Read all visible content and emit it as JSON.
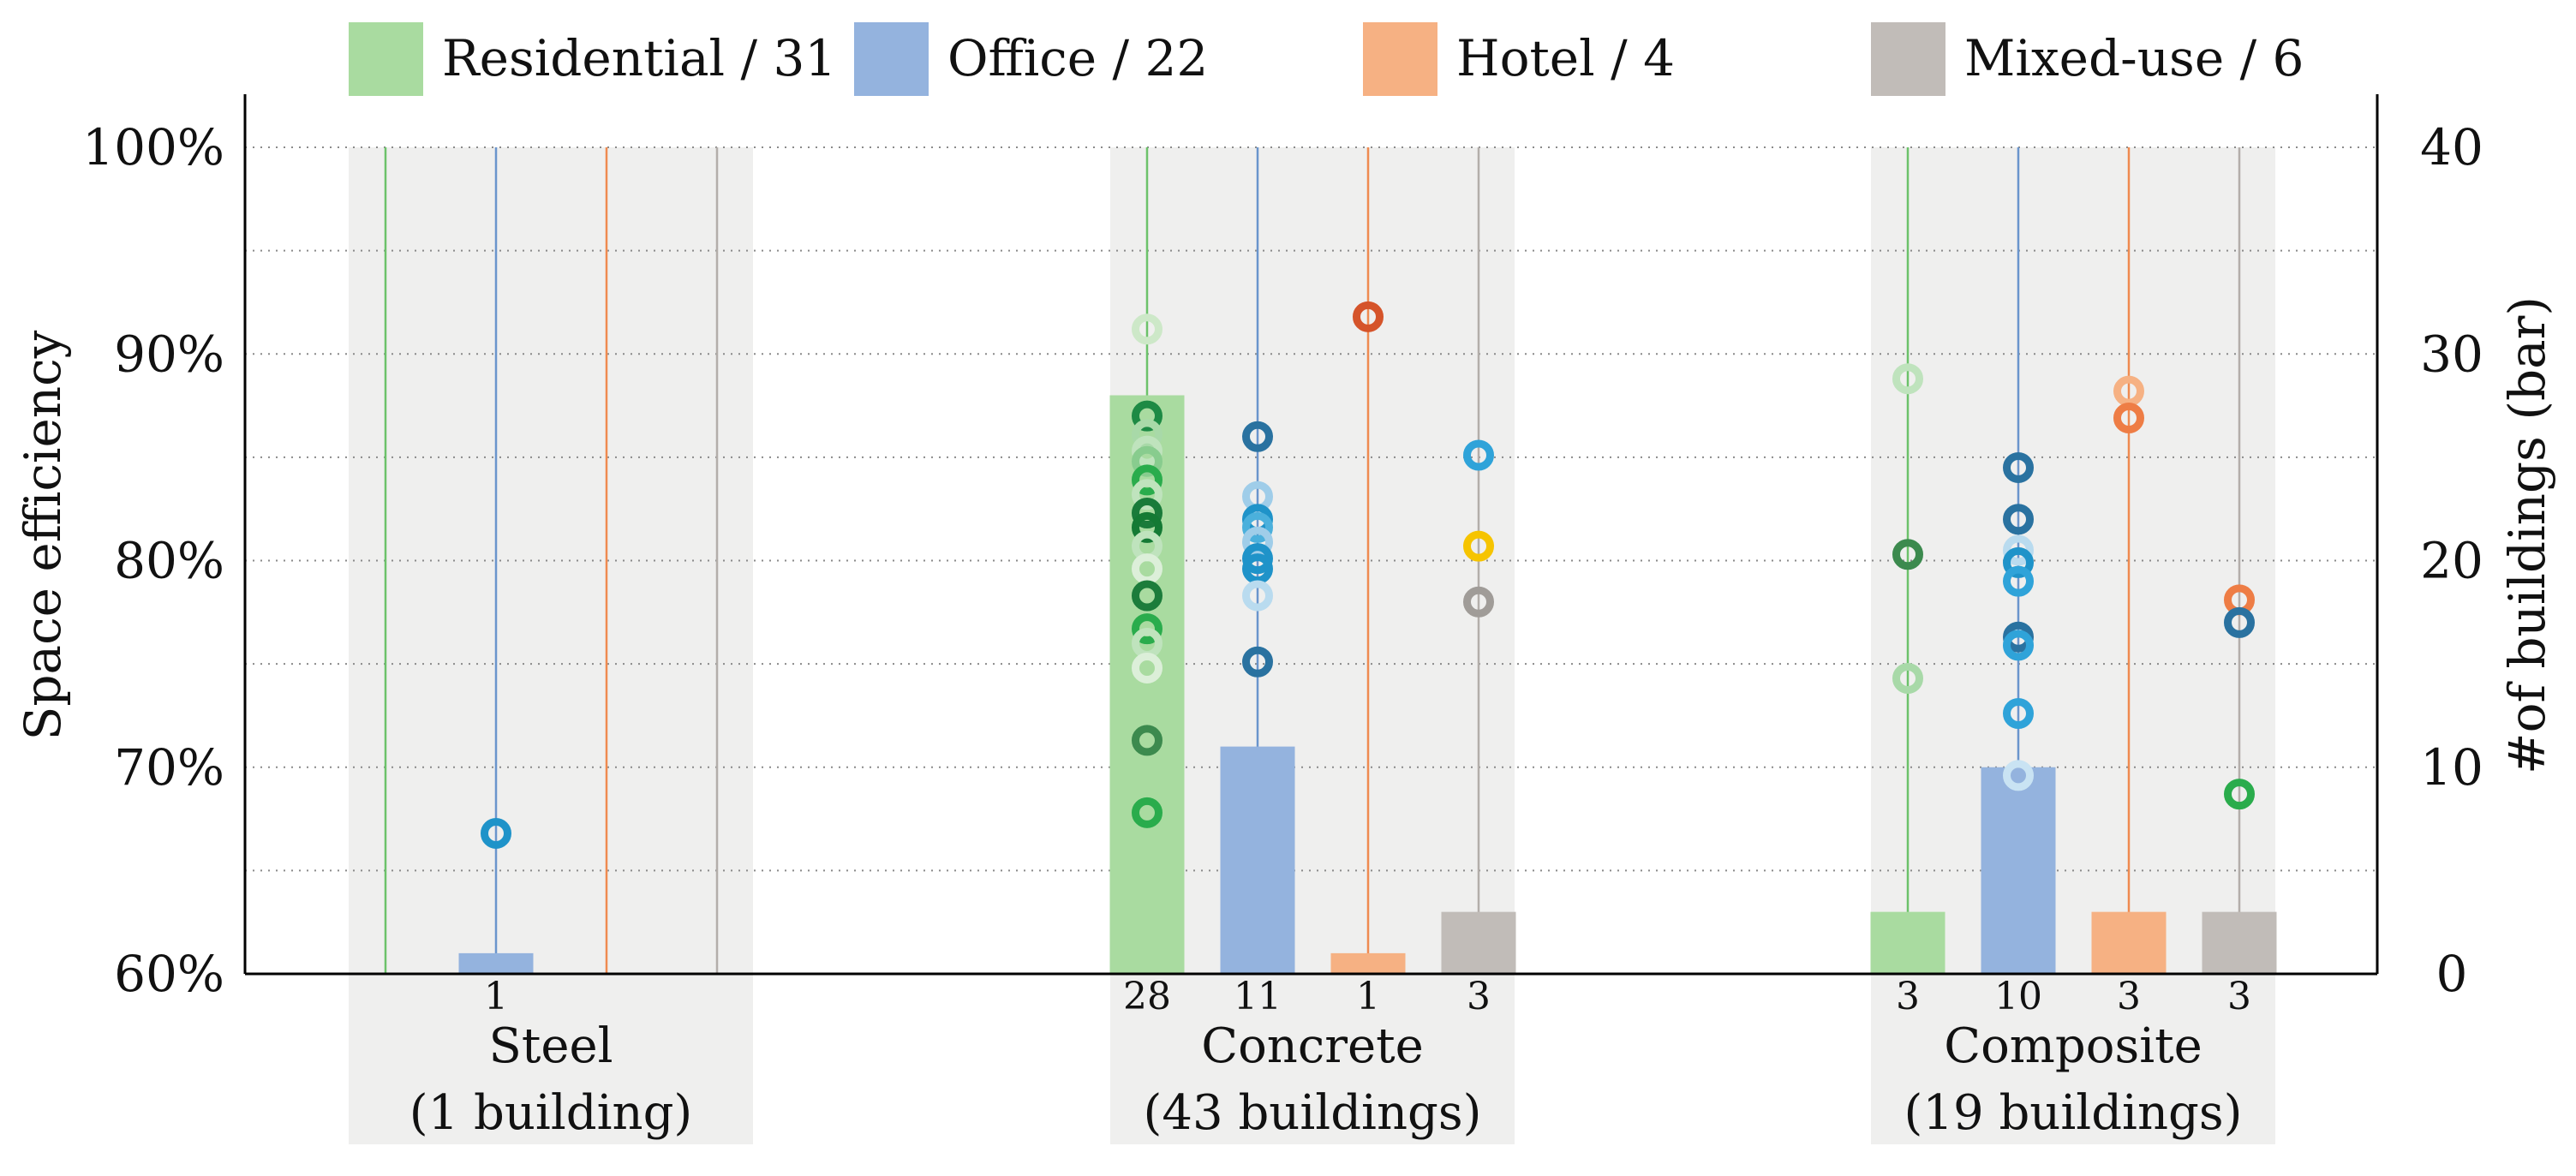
{
  "chart_data": {
    "type": "bar",
    "ylabel": "Space efficiency",
    "y2label": "#of buildings (bar)",
    "ylim": [
      60,
      100
    ],
    "y_ticks": [
      "60%",
      "70%",
      "80%",
      "90%",
      "100%"
    ],
    "y2lim": [
      0,
      40
    ],
    "y2_ticks": [
      "0",
      "10",
      "20",
      "30",
      "40"
    ],
    "grid": "horizontal dotted",
    "legend_position": "top",
    "legend": [
      {
        "label": "Residential / 31",
        "color": "#a9dba0"
      },
      {
        "label": "Office / 22",
        "color": "#94b3de"
      },
      {
        "label": "Hotel / 4",
        "color": "#f6b183"
      },
      {
        "label": "Mixed-use / 6",
        "color": "#c1bcb8"
      }
    ],
    "line_colors": [
      "#6cc26a",
      "#6a95cc",
      "#ef8a50",
      "#b3aeaa"
    ],
    "groups": [
      {
        "name": "Steel",
        "subtitle": "(1 building)",
        "counts": [
          null,
          "1",
          null,
          null
        ],
        "bar_values": [
          0,
          1,
          0,
          0
        ]
      },
      {
        "name": "Concrete",
        "subtitle": "(43 buildings)",
        "counts": [
          "28",
          "11",
          "1",
          "3"
        ],
        "bar_values": [
          28,
          11,
          1,
          3
        ]
      },
      {
        "name": "Composite",
        "subtitle": "(19 buildings)",
        "counts": [
          "3",
          "10",
          "3",
          "3"
        ],
        "bar_values": [
          3,
          10,
          3,
          3
        ]
      }
    ],
    "points": [
      {
        "g": 0,
        "s": 1,
        "y": 66.8,
        "c": "#1f93c9"
      },
      {
        "g": 1,
        "s": 0,
        "y": 91.2,
        "c": "#cde8c8"
      },
      {
        "g": 1,
        "s": 0,
        "y": 87.0,
        "c": "#1d8a44"
      },
      {
        "g": 1,
        "s": 0,
        "y": 86.1,
        "c": "#a8d9a8"
      },
      {
        "g": 1,
        "s": 0,
        "y": 85.3,
        "c": "#bfe3bd"
      },
      {
        "g": 1,
        "s": 0,
        "y": 84.8,
        "c": "#88cc8e"
      },
      {
        "g": 1,
        "s": 0,
        "y": 83.9,
        "c": "#2aac4c"
      },
      {
        "g": 1,
        "s": 0,
        "y": 83.2,
        "c": "#bfe3bd"
      },
      {
        "g": 1,
        "s": 0,
        "y": 82.3,
        "c": "#1a7b3a"
      },
      {
        "g": 1,
        "s": 0,
        "y": 81.6,
        "c": "#147a34"
      },
      {
        "g": 1,
        "s": 0,
        "y": 80.7,
        "c": "#bfe3bd"
      },
      {
        "g": 1,
        "s": 0,
        "y": 79.6,
        "c": "#dcefd9"
      },
      {
        "g": 1,
        "s": 0,
        "y": 78.3,
        "c": "#1c7c3b"
      },
      {
        "g": 1,
        "s": 0,
        "y": 76.7,
        "c": "#2aac4c"
      },
      {
        "g": 1,
        "s": 0,
        "y": 76.0,
        "c": "#bfe3bd"
      },
      {
        "g": 1,
        "s": 0,
        "y": 74.8,
        "c": "#dcefd9"
      },
      {
        "g": 1,
        "s": 0,
        "y": 71.3,
        "c": "#3c8a4e"
      },
      {
        "g": 1,
        "s": 0,
        "y": 67.8,
        "c": "#2aac4c"
      },
      {
        "g": 1,
        "s": 1,
        "y": 86.0,
        "c": "#2a72a0"
      },
      {
        "g": 1,
        "s": 1,
        "y": 83.1,
        "c": "#9fcde9"
      },
      {
        "g": 1,
        "s": 1,
        "y": 82.0,
        "c": "#1f93c9"
      },
      {
        "g": 1,
        "s": 1,
        "y": 81.6,
        "c": "#4bb0dc"
      },
      {
        "g": 1,
        "s": 1,
        "y": 80.9,
        "c": "#9fcde9"
      },
      {
        "g": 1,
        "s": 1,
        "y": 80.1,
        "c": "#1f93c9"
      },
      {
        "g": 1,
        "s": 1,
        "y": 79.6,
        "c": "#1f93c9"
      },
      {
        "g": 1,
        "s": 1,
        "y": 78.3,
        "c": "#b9dbef"
      },
      {
        "g": 1,
        "s": 1,
        "y": 75.1,
        "c": "#2a72a0"
      },
      {
        "g": 1,
        "s": 2,
        "y": 91.8,
        "c": "#d5542a"
      },
      {
        "g": 1,
        "s": 3,
        "y": 85.1,
        "c": "#2fa3d9"
      },
      {
        "g": 1,
        "s": 3,
        "y": 80.7,
        "c": "#f6c400"
      },
      {
        "g": 1,
        "s": 3,
        "y": 78.0,
        "c": "#a09c98"
      },
      {
        "g": 2,
        "s": 0,
        "y": 88.8,
        "c": "#bfe3bd"
      },
      {
        "g": 2,
        "s": 0,
        "y": 80.3,
        "c": "#3c8a4e"
      },
      {
        "g": 2,
        "s": 0,
        "y": 74.3,
        "c": "#a8d9a8"
      },
      {
        "g": 2,
        "s": 1,
        "y": 84.5,
        "c": "#2a72a0"
      },
      {
        "g": 2,
        "s": 1,
        "y": 82.0,
        "c": "#2a72a0"
      },
      {
        "g": 2,
        "s": 1,
        "y": 80.5,
        "c": "#b9dbef"
      },
      {
        "g": 2,
        "s": 1,
        "y": 79.9,
        "c": "#1f93c9"
      },
      {
        "g": 2,
        "s": 1,
        "y": 79.0,
        "c": "#2fa3d9"
      },
      {
        "g": 2,
        "s": 1,
        "y": 76.3,
        "c": "#2a72a0"
      },
      {
        "g": 2,
        "s": 1,
        "y": 75.9,
        "c": "#2fa3d9"
      },
      {
        "g": 2,
        "s": 1,
        "y": 72.6,
        "c": "#2fa3d9"
      },
      {
        "g": 2,
        "s": 1,
        "y": 69.6,
        "c": "#c9e3f3"
      },
      {
        "g": 2,
        "s": 2,
        "y": 88.2,
        "c": "#f6b183"
      },
      {
        "g": 2,
        "s": 2,
        "y": 86.9,
        "c": "#ee7d45"
      },
      {
        "g": 2,
        "s": 3,
        "y": 78.1,
        "c": "#ee7d45"
      },
      {
        "g": 2,
        "s": 3,
        "y": 77.0,
        "c": "#2a72a0"
      },
      {
        "g": 2,
        "s": 3,
        "y": 68.7,
        "c": "#2aac4c"
      }
    ]
  }
}
